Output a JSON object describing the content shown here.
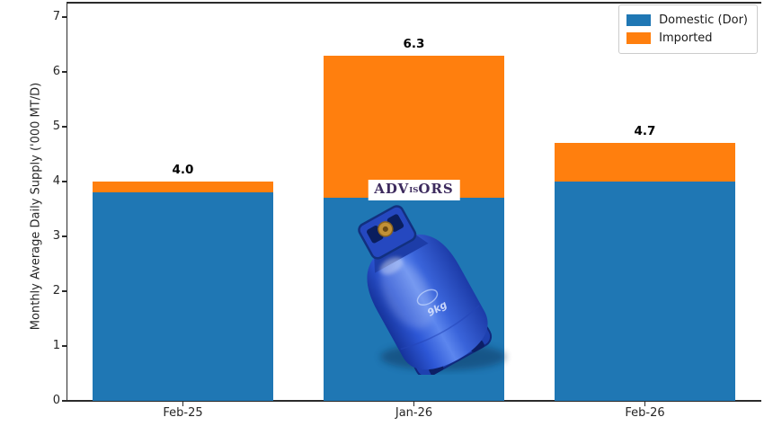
{
  "chart_data": {
    "type": "bar",
    "stacked": true,
    "title": "",
    "xlabel": "",
    "ylabel": "Monthly Average Daily Supply ('000 MT/D)",
    "categories": [
      "Feb-25",
      "Jan-26",
      "Feb-26"
    ],
    "series": [
      {
        "name": "Domestic (Dor)",
        "color": "#1f77b4",
        "values": [
          3.8,
          3.7,
          4.0
        ]
      },
      {
        "name": "Imported",
        "color": "#ff7f0e",
        "values": [
          0.2,
          2.6,
          0.7
        ]
      }
    ],
    "totals": [
      4.0,
      6.3,
      4.7
    ],
    "total_labels": [
      "4.0",
      "6.3",
      "4.7"
    ],
    "yticks": [
      0,
      1,
      2,
      3,
      4,
      5,
      6,
      7
    ],
    "ylim": [
      0,
      7.26
    ],
    "bar_width_fraction": 0.78,
    "grid": false,
    "legend_position": "upper right"
  },
  "watermark": {
    "left": "ADV",
    "mid": "IS",
    "right": "ORS",
    "color": "#3d2b5e",
    "background": "#ffffff"
  },
  "overlay": {
    "label": "blue LPG gas cylinder",
    "body_color": "#2d57d6"
  },
  "axis_colors": {
    "spine": "#2b2b2b",
    "tick_text": "#262626"
  }
}
